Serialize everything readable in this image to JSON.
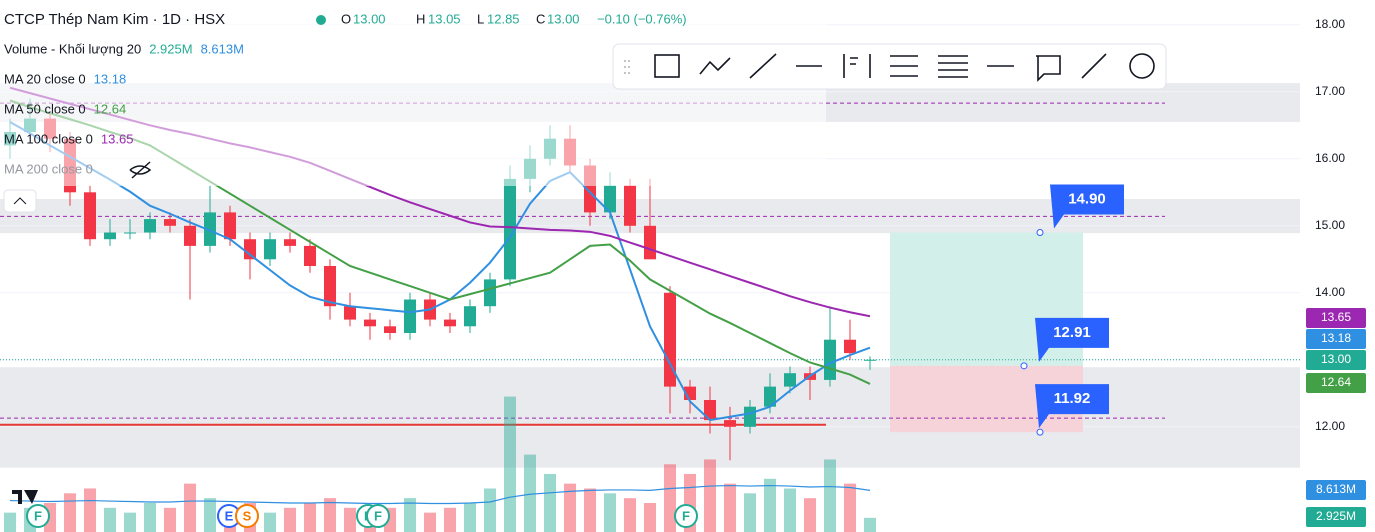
{
  "header": {
    "title": "CTCP Thép Nam Kim · 1D · HSX",
    "o_label": "O",
    "o": "13.00",
    "h_label": "H",
    "h": "13.05",
    "l_label": "L",
    "l": "12.85",
    "c_label": "C",
    "c": "13.00",
    "change": "−0.10 (−0.76%)"
  },
  "legend": [
    {
      "name": "Volume - Khối lượng 20",
      "values": [
        "2.925M",
        "8.613M"
      ]
    },
    {
      "name": "MA 20 close 0",
      "values": [
        "13.18"
      ]
    },
    {
      "name": "MA 50 close 0",
      "values": [
        "12.64"
      ]
    },
    {
      "name": "MA 100 close 0",
      "values": [
        "13.65"
      ]
    },
    {
      "name": "MA 200 close 0",
      "values": []
    }
  ],
  "price_badges": [
    "13.65",
    "13.18",
    "13.00",
    "12.64",
    "8.613M",
    "2.925M"
  ],
  "events": [
    "F",
    "E",
    "S",
    "F",
    "F",
    "F"
  ],
  "chart_data": {
    "type": "candlestick",
    "ylim": [
      10.43,
      18.37
    ],
    "yticks": [
      {
        "value": 12,
        "label": "12.00"
      },
      {
        "value": 13,
        "label": "13.00"
      },
      {
        "value": 14,
        "label": "14.00"
      },
      {
        "value": 15,
        "label": "15.00"
      },
      {
        "value": 16,
        "label": "16.00"
      },
      {
        "value": 17,
        "label": "17.00"
      },
      {
        "value": 18,
        "label": "18.00"
      }
    ],
    "up_color": "#22ab94",
    "down_color": "#f23645",
    "candles": [
      [
        16.2,
        16.6,
        16.0,
        16.4
      ],
      [
        16.4,
        16.9,
        16.3,
        16.6
      ],
      [
        16.6,
        16.7,
        16.1,
        16.3
      ],
      [
        16.3,
        16.4,
        15.3,
        15.5
      ],
      [
        15.5,
        15.6,
        14.7,
        14.8
      ],
      [
        14.8,
        15.1,
        14.7,
        14.9
      ],
      [
        14.9,
        15.1,
        14.8,
        14.9
      ],
      [
        14.9,
        15.2,
        14.8,
        15.1
      ],
      [
        15.1,
        15.2,
        14.9,
        15.0
      ],
      [
        15.0,
        15.1,
        13.9,
        14.7
      ],
      [
        14.7,
        15.6,
        14.6,
        15.2
      ],
      [
        15.2,
        15.3,
        14.7,
        14.8
      ],
      [
        14.8,
        14.9,
        14.2,
        14.5
      ],
      [
        14.5,
        14.9,
        14.4,
        14.8
      ],
      [
        14.8,
        14.9,
        14.6,
        14.7
      ],
      [
        14.7,
        14.8,
        14.3,
        14.4
      ],
      [
        14.4,
        14.5,
        13.6,
        13.8
      ],
      [
        13.8,
        14.0,
        13.5,
        13.6
      ],
      [
        13.6,
        13.7,
        13.3,
        13.5
      ],
      [
        13.5,
        13.6,
        13.3,
        13.4
      ],
      [
        13.4,
        14.0,
        13.3,
        13.9
      ],
      [
        13.9,
        14.0,
        13.5,
        13.6
      ],
      [
        13.6,
        13.7,
        13.4,
        13.5
      ],
      [
        13.5,
        13.9,
        13.4,
        13.8
      ],
      [
        13.8,
        14.3,
        13.7,
        14.2
      ],
      [
        14.2,
        15.9,
        14.1,
        15.7
      ],
      [
        15.7,
        16.2,
        15.5,
        16.0
      ],
      [
        16.0,
        16.5,
        15.9,
        16.3
      ],
      [
        16.3,
        16.5,
        15.8,
        15.9
      ],
      [
        15.9,
        16.0,
        15.0,
        15.2
      ],
      [
        15.2,
        15.8,
        15.1,
        15.6
      ],
      [
        15.6,
        15.7,
        14.9,
        15.0
      ],
      [
        15.0,
        15.7,
        14.5,
        14.5
      ],
      [
        14.0,
        14.1,
        12.2,
        12.6
      ],
      [
        12.6,
        12.7,
        12.2,
        12.4
      ],
      [
        12.4,
        12.6,
        11.9,
        12.1
      ],
      [
        12.1,
        12.3,
        11.5,
        12.0
      ],
      [
        12.0,
        12.4,
        11.9,
        12.3
      ],
      [
        12.3,
        12.8,
        12.2,
        12.6
      ],
      [
        12.6,
        12.9,
        12.5,
        12.8
      ],
      [
        12.8,
        12.9,
        12.4,
        12.7
      ],
      [
        12.7,
        13.8,
        12.6,
        13.3
      ],
      [
        13.3,
        13.6,
        13.0,
        13.1
      ],
      [
        13.0,
        13.05,
        12.85,
        13.0
      ]
    ],
    "series": [
      {
        "name": "MA 20",
        "color": "#2f8fe0",
        "values": [
          16.55,
          16.38,
          16.2,
          16.03,
          15.86,
          15.69,
          15.51,
          15.3,
          15.18,
          15.05,
          14.93,
          14.8,
          14.57,
          14.34,
          14.11,
          13.94,
          13.86,
          13.8,
          13.77,
          13.74,
          13.71,
          13.75,
          13.9,
          14.15,
          14.45,
          14.83,
          15.33,
          15.67,
          15.8,
          15.5,
          15.2,
          14.35,
          13.5,
          12.94,
          12.38,
          12.1,
          12.15,
          12.2,
          12.3,
          12.54,
          12.76,
          12.95,
          13.07,
          13.18
        ]
      },
      {
        "name": "MA 50",
        "color": "#43a047",
        "values": [
          16.87,
          16.77,
          16.68,
          16.59,
          16.5,
          16.4,
          16.31,
          16.2,
          16.02,
          15.84,
          15.66,
          15.48,
          15.3,
          15.12,
          14.94,
          14.76,
          14.58,
          14.4,
          14.3,
          14.2,
          14.1,
          14.0,
          13.9,
          13.98,
          14.06,
          14.14,
          14.22,
          14.3,
          14.5,
          14.7,
          14.72,
          14.48,
          14.2,
          14.03,
          13.86,
          13.69,
          13.55,
          13.4,
          13.25,
          13.1,
          12.96,
          12.87,
          12.78,
          12.64
        ]
      },
      {
        "name": "MA 100",
        "color": "#9c27b0",
        "values": [
          17.06,
          16.98,
          16.9,
          16.82,
          16.74,
          16.66,
          16.58,
          16.5,
          16.43,
          16.37,
          16.3,
          16.23,
          16.17,
          16.1,
          16.03,
          15.94,
          15.82,
          15.7,
          15.58,
          15.46,
          15.35,
          15.25,
          15.15,
          15.05,
          14.99,
          14.98,
          14.96,
          14.94,
          14.93,
          14.91,
          14.85,
          14.75,
          14.65,
          14.55,
          14.45,
          14.35,
          14.25,
          14.15,
          14.05,
          13.95,
          13.86,
          13.78,
          13.71,
          13.65
        ]
      }
    ],
    "volume_ylim": [
      0,
      110
    ],
    "volume": [
      4,
      5,
      6,
      8,
      9,
      5,
      4,
      6,
      5,
      10,
      7,
      5,
      6,
      4,
      5,
      6,
      7,
      5,
      4,
      5,
      7,
      4,
      5,
      6,
      9,
      28,
      16,
      12,
      10,
      9,
      8,
      7,
      6,
      14,
      12,
      15,
      10,
      8,
      11,
      9,
      7,
      15,
      10,
      2.925
    ],
    "volume_ma": {
      "color": "#2f8fe0",
      "values": [
        6.5,
        6.4,
        6.3,
        6.4,
        6.5,
        6.4,
        6.3,
        6.2,
        6.2,
        6.4,
        6.4,
        6.3,
        6.2,
        6.1,
        6.0,
        6.0,
        6.1,
        6.0,
        5.9,
        5.9,
        6.0,
        5.9,
        5.9,
        6.0,
        6.2,
        7.2,
        7.8,
        8.1,
        8.4,
        8.6,
        8.7,
        8.7,
        8.6,
        9.0,
        9.2,
        9.5,
        9.6,
        9.5,
        9.6,
        9.5,
        9.3,
        9.4,
        9.2,
        8.613
      ]
    },
    "zones": [
      [
        16.55,
        17.13
      ],
      [
        14.89,
        15.4
      ],
      [
        11.39,
        12.89
      ]
    ],
    "levels": [
      16.83,
      15.14,
      12.13
    ],
    "support": 12.03,
    "last": 13.0,
    "position": {
      "target": {
        "value": 14.9,
        "label": "14.90"
      },
      "entry": {
        "value": 12.91,
        "label": "12.91"
      },
      "stop": {
        "value": 11.92,
        "label": "11.92"
      }
    }
  }
}
